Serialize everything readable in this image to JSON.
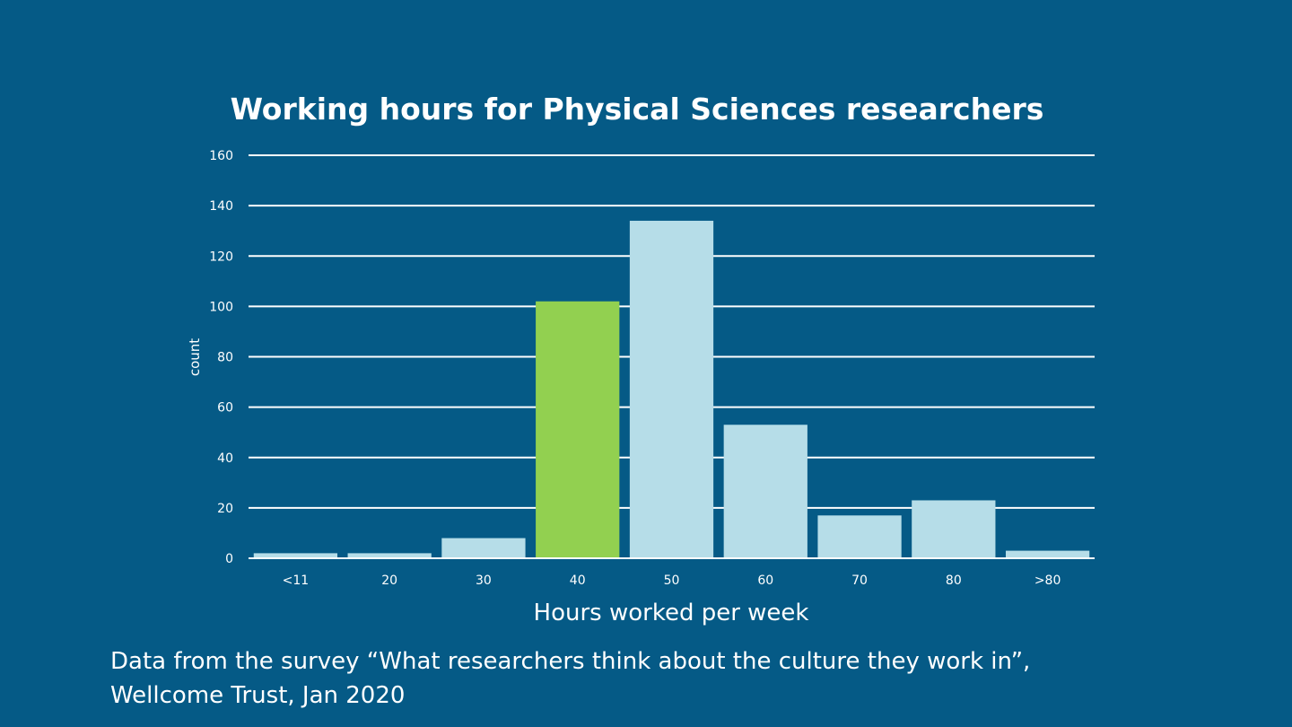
{
  "chart_data": {
    "type": "bar",
    "title": "Working hours for Physical Sciences researchers",
    "xlabel": "Hours worked per week",
    "ylabel": "count",
    "categories": [
      "<11",
      "20",
      "30",
      "40",
      "50",
      "60",
      "70",
      "80",
      ">80"
    ],
    "values": [
      2,
      2,
      8,
      102,
      134,
      53,
      17,
      23,
      3
    ],
    "highlight_category": "40",
    "ylim": [
      0,
      160
    ],
    "yticks": [
      0,
      20,
      40,
      60,
      80,
      100,
      120,
      140,
      160
    ],
    "grid": true,
    "colors": {
      "background": "#055a86",
      "bar": "#b6dde8",
      "highlight": "#92d050",
      "grid": "#ffffff"
    }
  },
  "footnote": {
    "line1": "Data from the survey “What researchers think about the culture they work in”,",
    "line2": "Wellcome Trust, Jan 2020"
  }
}
